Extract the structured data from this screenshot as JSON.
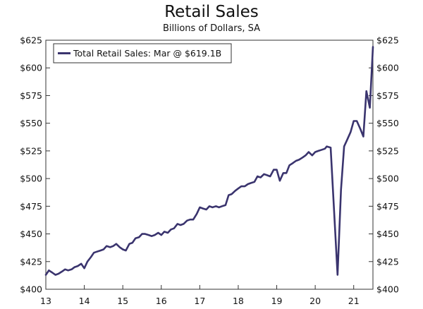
{
  "chart_data": {
    "type": "line",
    "title": "Retail Sales",
    "subtitle": "Billions of Dollars, SA",
    "xlabel": "",
    "ylabel": "",
    "xlim": [
      2013,
      2021.5
    ],
    "ylim": [
      400,
      625
    ],
    "x_ticks": [
      {
        "value": 2013,
        "label": "13"
      },
      {
        "value": 2014,
        "label": "14"
      },
      {
        "value": 2015,
        "label": "15"
      },
      {
        "value": 2016,
        "label": "16"
      },
      {
        "value": 2017,
        "label": "17"
      },
      {
        "value": 2018,
        "label": "18"
      },
      {
        "value": 2019,
        "label": "19"
      },
      {
        "value": 2020,
        "label": "20"
      },
      {
        "value": 2021,
        "label": "21"
      }
    ],
    "y_ticks": [
      {
        "value": 400,
        "label": "$400"
      },
      {
        "value": 425,
        "label": "$425"
      },
      {
        "value": 450,
        "label": "$450"
      },
      {
        "value": 475,
        "label": "$475"
      },
      {
        "value": 500,
        "label": "$500"
      },
      {
        "value": 525,
        "label": "$525"
      },
      {
        "value": 550,
        "label": "$550"
      },
      {
        "value": 575,
        "label": "$575"
      },
      {
        "value": 600,
        "label": "$600"
      },
      {
        "value": 625,
        "label": "$625"
      }
    ],
    "grid": false,
    "legend_position": "top-left",
    "series": [
      {
        "name": "Total Retail Sales: Mar @ $619.1B",
        "color": "#3a346e",
        "points": [
          [
            2013.0,
            413
          ],
          [
            2013.08,
            417
          ],
          [
            2013.17,
            415
          ],
          [
            2013.25,
            413
          ],
          [
            2013.33,
            414
          ],
          [
            2013.42,
            416
          ],
          [
            2013.5,
            418
          ],
          [
            2013.58,
            417
          ],
          [
            2013.67,
            418
          ],
          [
            2013.75,
            420
          ],
          [
            2013.83,
            421
          ],
          [
            2013.92,
            423
          ],
          [
            2014.0,
            419
          ],
          [
            2014.08,
            425
          ],
          [
            2014.17,
            429
          ],
          [
            2014.25,
            433
          ],
          [
            2014.33,
            434
          ],
          [
            2014.42,
            435
          ],
          [
            2014.5,
            436
          ],
          [
            2014.58,
            439
          ],
          [
            2014.67,
            438
          ],
          [
            2014.75,
            439
          ],
          [
            2014.83,
            441
          ],
          [
            2014.92,
            438
          ],
          [
            2015.0,
            436
          ],
          [
            2015.08,
            435
          ],
          [
            2015.17,
            441
          ],
          [
            2015.25,
            442
          ],
          [
            2015.33,
            446
          ],
          [
            2015.42,
            447
          ],
          [
            2015.5,
            450
          ],
          [
            2015.58,
            450
          ],
          [
            2015.67,
            449
          ],
          [
            2015.75,
            448
          ],
          [
            2015.83,
            449
          ],
          [
            2015.92,
            451
          ],
          [
            2016.0,
            449
          ],
          [
            2016.08,
            452
          ],
          [
            2016.17,
            451
          ],
          [
            2016.25,
            454
          ],
          [
            2016.33,
            455
          ],
          [
            2016.42,
            459
          ],
          [
            2016.5,
            458
          ],
          [
            2016.58,
            459
          ],
          [
            2016.67,
            462
          ],
          [
            2016.75,
            463
          ],
          [
            2016.83,
            463
          ],
          [
            2016.92,
            468
          ],
          [
            2017.0,
            474
          ],
          [
            2017.08,
            473
          ],
          [
            2017.17,
            472
          ],
          [
            2017.25,
            475
          ],
          [
            2017.33,
            474
          ],
          [
            2017.42,
            475
          ],
          [
            2017.5,
            474
          ],
          [
            2017.58,
            475
          ],
          [
            2017.67,
            476
          ],
          [
            2017.75,
            485
          ],
          [
            2017.83,
            486
          ],
          [
            2017.92,
            489
          ],
          [
            2018.0,
            491
          ],
          [
            2018.08,
            493
          ],
          [
            2018.17,
            493
          ],
          [
            2018.25,
            495
          ],
          [
            2018.33,
            496
          ],
          [
            2018.42,
            497
          ],
          [
            2018.5,
            502
          ],
          [
            2018.58,
            501
          ],
          [
            2018.67,
            504
          ],
          [
            2018.75,
            503
          ],
          [
            2018.83,
            502
          ],
          [
            2018.92,
            508
          ],
          [
            2019.0,
            508
          ],
          [
            2019.08,
            498
          ],
          [
            2019.17,
            505
          ],
          [
            2019.25,
            505
          ],
          [
            2019.33,
            512
          ],
          [
            2019.42,
            514
          ],
          [
            2019.5,
            516
          ],
          [
            2019.58,
            517
          ],
          [
            2019.67,
            519
          ],
          [
            2019.75,
            521
          ],
          [
            2019.83,
            524
          ],
          [
            2019.92,
            521
          ],
          [
            2020.0,
            524
          ],
          [
            2020.08,
            525
          ],
          [
            2020.17,
            526
          ],
          [
            2020.25,
            527
          ],
          [
            2020.3,
            529
          ],
          [
            2020.4,
            528
          ],
          [
            2020.58,
            413
          ],
          [
            2020.67,
            490
          ],
          [
            2020.75,
            529
          ],
          [
            2020.83,
            535
          ],
          [
            2020.92,
            542
          ],
          [
            2021.0,
            552
          ],
          [
            2021.08,
            552
          ],
          [
            2021.17,
            545
          ],
          [
            2021.25,
            538
          ],
          [
            2021.33,
            579
          ],
          [
            2021.42,
            564
          ],
          [
            2021.5,
            619
          ]
        ]
      }
    ]
  }
}
